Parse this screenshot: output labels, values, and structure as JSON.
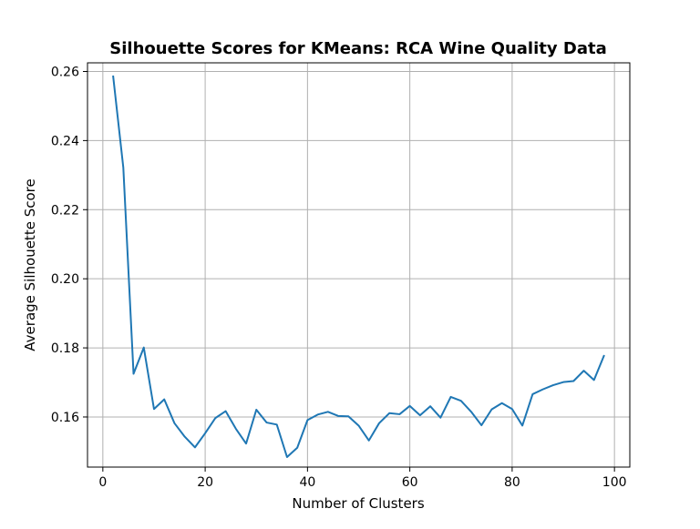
{
  "chart_data": {
    "type": "line",
    "title": "Silhouette Scores for KMeans: RCA Wine Quality Data",
    "xlabel": "Number of Clusters",
    "ylabel": "Average Silhouette Score",
    "xlim": [
      -3,
      103
    ],
    "ylim": [
      0.1455,
      0.2625
    ],
    "xticks": [
      0,
      20,
      40,
      60,
      80,
      100
    ],
    "xtick_labels": [
      "0",
      "20",
      "40",
      "60",
      "80",
      "100"
    ],
    "yticks": [
      0.16,
      0.18,
      0.2,
      0.22,
      0.24,
      0.26
    ],
    "ytick_labels": [
      "0.16",
      "0.18",
      "0.20",
      "0.22",
      "0.24",
      "0.26"
    ],
    "grid": true,
    "color": "#1f77b4",
    "x": [
      2,
      4,
      6,
      8,
      10,
      12,
      14,
      16,
      18,
      20,
      22,
      24,
      26,
      28,
      30,
      32,
      34,
      36,
      38,
      40,
      42,
      44,
      46,
      48,
      50,
      52,
      54,
      56,
      58,
      60,
      62,
      64,
      66,
      68,
      70,
      72,
      74,
      76,
      78,
      80,
      82,
      84,
      86,
      88,
      90,
      92,
      94,
      96,
      98
    ],
    "y": [
      0.2588,
      0.2322,
      0.1725,
      0.1801,
      0.1623,
      0.1651,
      0.1582,
      0.1543,
      0.1512,
      0.1553,
      0.1597,
      0.1617,
      0.1566,
      0.1523,
      0.1621,
      0.1584,
      0.1578,
      0.1484,
      0.1511,
      0.1591,
      0.1607,
      0.1615,
      0.1603,
      0.1602,
      0.1575,
      0.1532,
      0.1582,
      0.1611,
      0.1608,
      0.1632,
      0.1605,
      0.1631,
      0.1598,
      0.1658,
      0.1647,
      0.1615,
      0.1576,
      0.1622,
      0.164,
      0.1623,
      0.1575,
      0.1666,
      0.168,
      0.1692,
      0.1701,
      0.1704,
      0.1734,
      0.1707,
      0.1779
    ]
  }
}
